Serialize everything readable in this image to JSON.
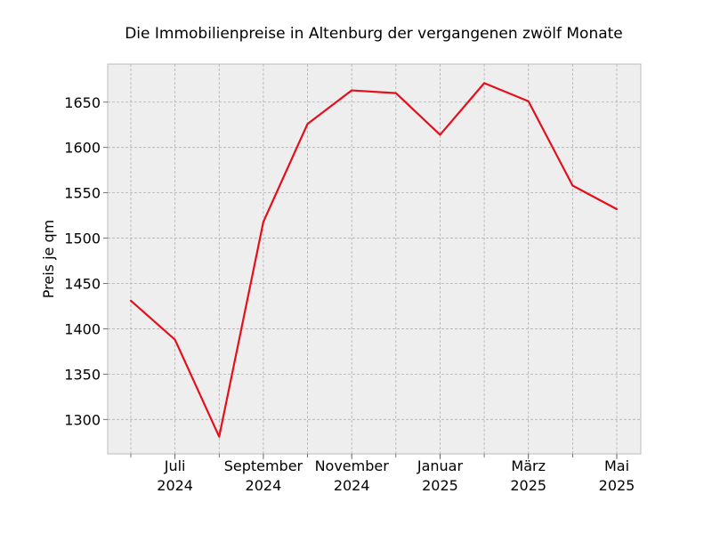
{
  "chart_data": {
    "type": "line",
    "title": "Die Immobilienpreise in Altenburg der vergangenen zwölf Monate",
    "xlabel": "",
    "ylabel": "Preis je qm",
    "x": [
      "2024-06",
      "2024-07",
      "2024-08",
      "2024-09",
      "2024-10",
      "2024-11",
      "2024-12",
      "2025-01",
      "2025-02",
      "2025-03",
      "2025-04",
      "2025-05"
    ],
    "x_tick_labels": [
      {
        "x": "2024-07",
        "month": "Juli",
        "year": "2024"
      },
      {
        "x": "2024-09",
        "month": "September",
        "year": "2024"
      },
      {
        "x": "2024-11",
        "month": "November",
        "year": "2024"
      },
      {
        "x": "2025-01",
        "month": "Januar",
        "year": "2025"
      },
      {
        "x": "2025-03",
        "month": "März",
        "year": "2025"
      },
      {
        "x": "2025-05",
        "month": "Mai",
        "year": "2025"
      }
    ],
    "series": [
      {
        "values": [
          1431,
          1388,
          1281,
          1518,
          1626,
          1663,
          1660,
          1614,
          1671,
          1651,
          1558,
          1532
        ],
        "color": "#e3101c"
      }
    ],
    "ylim": [
      1262,
      1692
    ],
    "y_ticks": [
      1300,
      1350,
      1400,
      1450,
      1500,
      1550,
      1600,
      1650
    ],
    "grid": true,
    "legend": false,
    "colors": {
      "background": "#eeeeee",
      "line": "#e3101c"
    }
  }
}
